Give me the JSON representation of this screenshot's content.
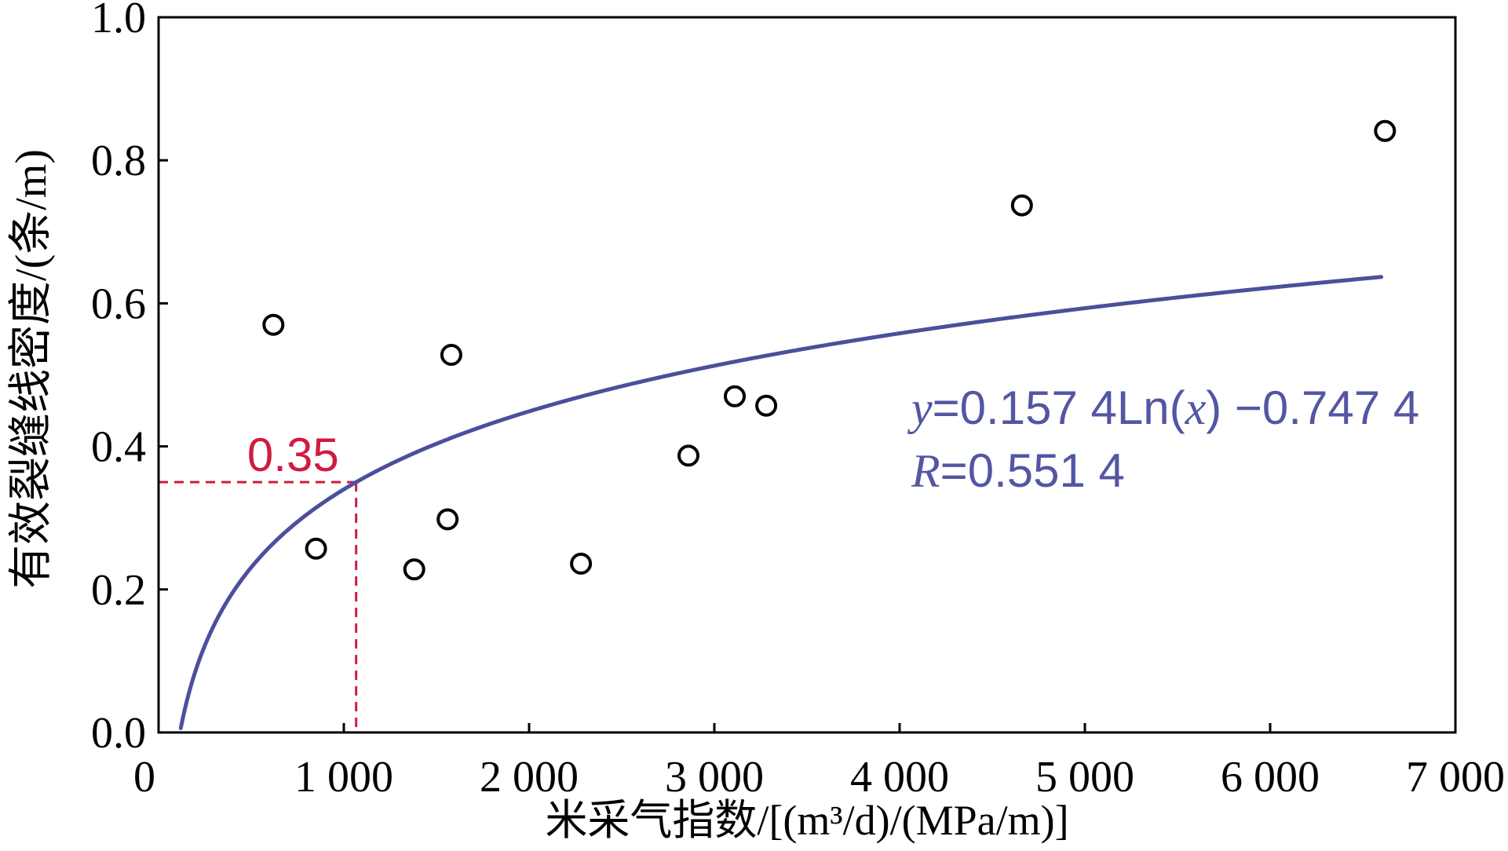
{
  "chart_data": {
    "type": "scatter",
    "xlabel": "米采气指数/[(m³/d)/(MPa/m)]",
    "ylabel": "有效裂缝线密度/(条/m)",
    "xlim": [
      0,
      7000
    ],
    "ylim": [
      0,
      1.0
    ],
    "xticks": [
      0,
      1000,
      2000,
      3000,
      4000,
      5000,
      6000,
      7000
    ],
    "xtick_labels": [
      "0",
      "1 000",
      "2 000",
      "3 000",
      "4 000",
      "5 000",
      "6 000",
      "7 000"
    ],
    "yticks": [
      0,
      0.2,
      0.4,
      0.6,
      0.8,
      1.0
    ],
    "ytick_labels": [
      "0.0",
      "0.2",
      "0.4",
      "0.6",
      "0.8",
      "1.0"
    ],
    "grid": false,
    "series": [
      {
        "type": "scatter",
        "x": [
          620,
          850,
          1380,
          1560,
          1580,
          2280,
          2860,
          3110,
          3280,
          4660,
          6620
        ],
        "y": [
          0.57,
          0.257,
          0.228,
          0.298,
          0.528,
          0.236,
          0.387,
          0.47,
          0.457,
          0.737,
          0.841
        ]
      },
      {
        "type": "line",
        "ln_coefficient": 0.1574,
        "intercept": -0.7474,
        "x_range": [
          120,
          6600
        ]
      }
    ],
    "reference": {
      "y": 0.35,
      "label": "0.35"
    },
    "annotations": {
      "equation": [
        "y",
        "=0.157 4Ln(",
        "x",
        ") −0.747 4"
      ],
      "r_value": [
        "R",
        "=0.551 4"
      ]
    },
    "colors": {
      "points": "#000000",
      "fit_line": "#4b4f9c",
      "annotation_text": "#5256a3",
      "reference": "#d11a3f",
      "axes": "#000000"
    }
  }
}
